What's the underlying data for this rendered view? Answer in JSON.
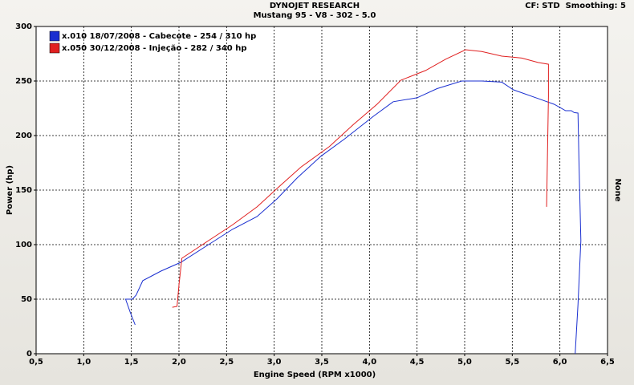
{
  "chart_data": {
    "type": "line",
    "title": "DYNOJET RESEARCH",
    "subtitle": "Mustang 95 - V8 - 302 - 5.0",
    "header_right": "CF: STD  Smoothing: 5",
    "right_label": "None",
    "x_label": "Engine Speed (RPM x1000)",
    "y_label": "Power (hp)",
    "xlim": [
      0.5,
      6.5
    ],
    "ylim": [
      0,
      300
    ],
    "xticks": [
      {
        "value": 0.5,
        "label": "0,5"
      },
      {
        "value": 1.0,
        "label": "1,0"
      },
      {
        "value": 1.5,
        "label": "1,5"
      },
      {
        "value": 2.0,
        "label": "2,0"
      },
      {
        "value": 2.5,
        "label": "2,5"
      },
      {
        "value": 3.0,
        "label": "3,0"
      },
      {
        "value": 3.5,
        "label": "3,5"
      },
      {
        "value": 4.0,
        "label": "4,0"
      },
      {
        "value": 4.5,
        "label": "4,5"
      },
      {
        "value": 5.0,
        "label": "5,0"
      },
      {
        "value": 5.5,
        "label": "5,5"
      },
      {
        "value": 6.0,
        "label": "6,0"
      },
      {
        "value": 6.5,
        "label": "6,5"
      }
    ],
    "yticks": [
      0,
      50,
      100,
      150,
      200,
      250,
      300
    ],
    "grid": true,
    "legend": "top-left",
    "series": [
      {
        "name": "x.010 18/07/2008 - Cabecote - 254 / 310 hp",
        "color": "#1a2fd0",
        "x": [
          1.54,
          1.49,
          1.44,
          1.51,
          1.55,
          1.62,
          1.81,
          2.02,
          2.31,
          2.56,
          2.82,
          3.03,
          3.24,
          3.49,
          3.74,
          4.04,
          4.25,
          4.5,
          4.71,
          4.97,
          5.18,
          5.39,
          5.51,
          5.77,
          5.94,
          6.06,
          6.12,
          6.15,
          6.19,
          6.2,
          6.22,
          6.19,
          6.16
        ],
        "values": [
          26.5,
          37.5,
          50,
          50,
          53.7,
          67,
          75.7,
          83.8,
          100,
          114,
          125.7,
          142,
          161,
          181,
          197,
          217.6,
          231,
          234.6,
          243,
          250,
          250,
          249,
          242,
          234,
          228.7,
          222.8,
          222.8,
          221,
          220.6,
          177,
          103.7,
          44.9,
          0
        ]
      },
      {
        "name": "x.050 30/12/2008 - Injeção - 282 / 340 hp",
        "color": "#e02020",
        "x": [
          1.93,
          1.98,
          2.0,
          2.03,
          2.31,
          2.56,
          2.82,
          3.03,
          3.28,
          3.58,
          3.83,
          4.08,
          4.33,
          4.59,
          4.8,
          5.01,
          5.18,
          5.39,
          5.6,
          5.77,
          5.88,
          5.88,
          5.86
        ],
        "values": [
          42.6,
          43.4,
          63,
          87.5,
          103.7,
          118,
          134.6,
          151.5,
          171,
          190,
          210,
          228.7,
          250.7,
          259.6,
          270,
          278.7,
          277,
          272.8,
          271,
          267,
          265.4,
          236,
          134.6
        ]
      }
    ]
  }
}
